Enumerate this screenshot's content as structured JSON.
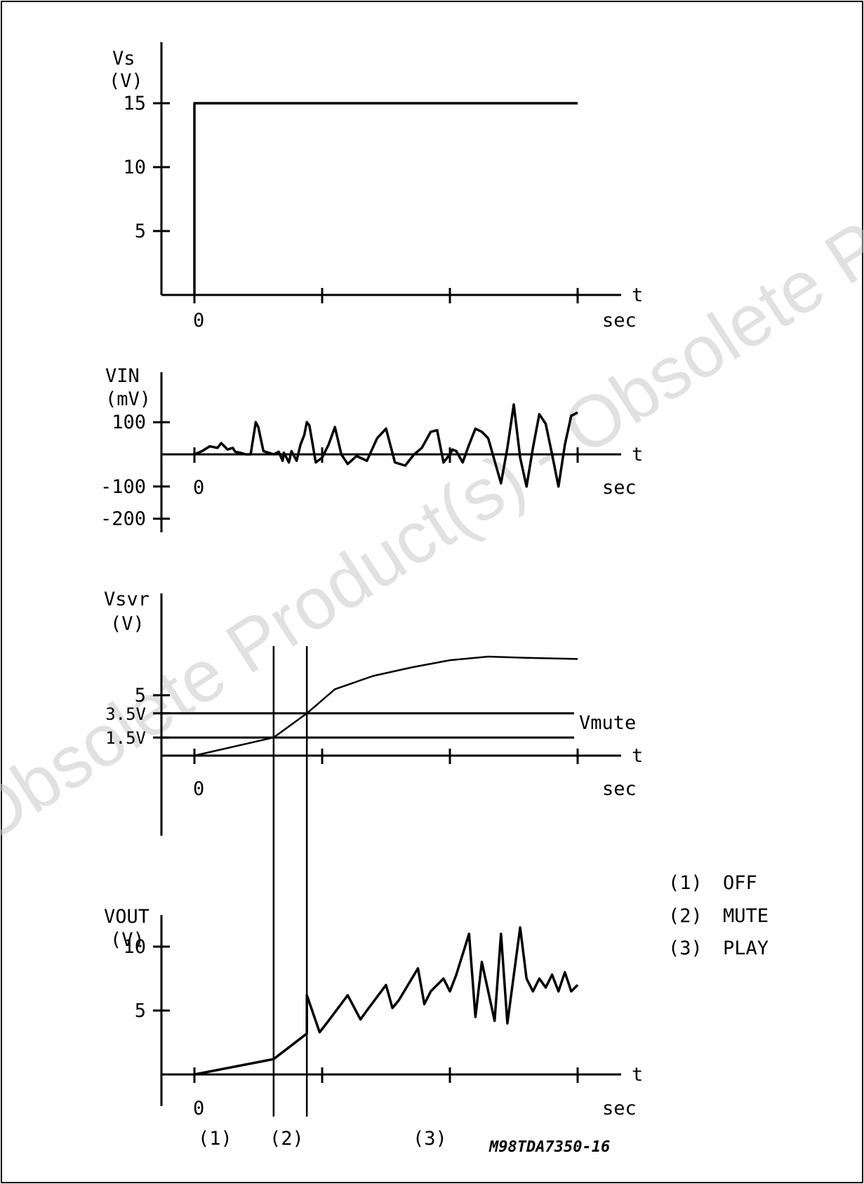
{
  "chart_data": [
    {
      "type": "line",
      "ylabel": "Vs",
      "yunit": "(V)",
      "xlabel": "t",
      "xunit": "sec",
      "x_tick_labels": [
        "0"
      ],
      "y_ticks": [
        5,
        10,
        15
      ],
      "y_tick_labels": [
        "5",
        "10",
        "15"
      ],
      "ylim": [
        0,
        18
      ],
      "xlim": [
        -0.25,
        3.4
      ],
      "series": [
        {
          "x": [
            0,
            0,
            3
          ],
          "y": [
            0,
            15,
            15
          ]
        }
      ]
    },
    {
      "type": "line",
      "ylabel": "VIN",
      "yunit": "(mV)",
      "xlabel": "t",
      "xunit": "sec",
      "x_tick_labels": [
        "0"
      ],
      "y_ticks": [
        100,
        -100,
        -200
      ],
      "y_tick_labels": [
        "100",
        "-100",
        "-200"
      ],
      "ylim": [
        -250,
        250
      ],
      "xlim": [
        -0.25,
        3.4
      ],
      "series": [
        {
          "x": [
            0,
            0.06,
            0.12,
            0.18,
            0.21,
            0.26,
            0.3,
            0.32,
            0.36,
            0.4,
            0.44,
            0.48,
            0.5,
            0.54,
            0.58,
            0.62,
            0.66,
            0.69,
            0.7,
            0.74,
            0.76,
            0.78,
            0.8,
            0.83,
            0.86,
            0.88,
            0.9,
            0.95,
            1.0,
            1.05,
            1.1,
            1.15,
            1.2,
            1.27,
            1.35,
            1.43,
            1.5,
            1.57,
            1.65,
            1.72,
            1.78,
            1.85,
            1.9,
            1.95,
            2.0,
            2.02,
            2.05,
            2.1,
            2.15,
            2.2,
            2.25,
            2.3,
            2.35,
            2.4,
            2.45,
            2.5,
            2.55,
            2.6,
            2.65,
            2.7,
            2.75,
            2.8,
            2.85,
            2.9,
            2.95,
            3.0
          ],
          "y": [
            0,
            10,
            25,
            20,
            35,
            15,
            20,
            8,
            5,
            0,
            0,
            100,
            85,
            10,
            5,
            0,
            8,
            -20,
            5,
            -25,
            10,
            -5,
            -20,
            30,
            60,
            100,
            90,
            -25,
            -10,
            30,
            85,
            0,
            -30,
            -5,
            -20,
            50,
            80,
            -25,
            -35,
            0,
            20,
            70,
            75,
            -25,
            0,
            15,
            10,
            -25,
            30,
            80,
            70,
            50,
            -20,
            -90,
            20,
            155,
            -10,
            -100,
            20,
            125,
            95,
            0,
            -100,
            30,
            120,
            130
          ],
          "note": ""
        }
      ]
    },
    {
      "type": "line",
      "ylabel": "Vsvr",
      "yunit": "(V)",
      "xlabel": "t",
      "xunit": "sec",
      "x_tick_labels": [
        "0"
      ],
      "y_ticks": [
        5,
        3.5,
        1.5
      ],
      "y_tick_labels": [
        "5",
        "3.5V",
        "1.5V"
      ],
      "ylim": [
        -6,
        13
      ],
      "xlim": [
        -0.25,
        3.4
      ],
      "reference_lines": [
        {
          "y": 3.5,
          "label": "Vmute"
        },
        {
          "y": 1.5,
          "label": ""
        }
      ],
      "series": [
        {
          "x": [
            0,
            0.62,
            0.88,
            1.1,
            1.4,
            1.7,
            2.0,
            2.3,
            2.6,
            3.0
          ],
          "y": [
            0,
            1.5,
            3.5,
            5.5,
            6.6,
            7.3,
            7.9,
            8.2,
            8.1,
            8.0
          ]
        }
      ]
    },
    {
      "type": "line",
      "ylabel": "VOUT",
      "yunit": "(V)",
      "xlabel": "t",
      "xunit": "sec",
      "x_tick_labels": [
        "0"
      ],
      "y_ticks": [
        10,
        5
      ],
      "y_tick_labels": [
        "10",
        "5"
      ],
      "ylim": [
        -3,
        13
      ],
      "xlim": [
        -0.25,
        3.4
      ],
      "series": [
        {
          "x": [
            0,
            0.62,
            0.88,
            0.88,
            0.98,
            1.05,
            1.2,
            1.3,
            1.35,
            1.5,
            1.55,
            1.6,
            1.75,
            1.8,
            1.85,
            1.95,
            2.0,
            2.05,
            2.15,
            2.2,
            2.25,
            2.35,
            2.4,
            2.45,
            2.55,
            2.6,
            2.65,
            2.7,
            2.75,
            2.8,
            2.85,
            2.9,
            2.95,
            3.0
          ],
          "y": [
            0,
            1.2,
            3.2,
            6.2,
            3.3,
            4.2,
            6.2,
            4.3,
            5.0,
            7.0,
            5.2,
            5.8,
            8.3,
            5.5,
            6.5,
            7.5,
            6.5,
            7.8,
            11.0,
            4.5,
            8.8,
            4.2,
            11.0,
            4.0,
            11.5,
            7.5,
            6.5,
            7.5,
            6.8,
            7.8,
            6.5,
            8.0,
            6.5,
            7.0
          ]
        }
      ]
    }
  ],
  "state_lines_x": [
    0.62,
    0.88
  ],
  "legend": [
    {
      "key": "(1)",
      "label": "OFF"
    },
    {
      "key": "(2)",
      "label": "MUTE"
    },
    {
      "key": "(3)",
      "label": "PLAY"
    }
  ],
  "region_labels": [
    "(1)",
    "(2)",
    "(3)"
  ],
  "figure_code": "M98TDA7350-16",
  "watermark": "Obsolete Product(s) - Obsolete Product(s)"
}
